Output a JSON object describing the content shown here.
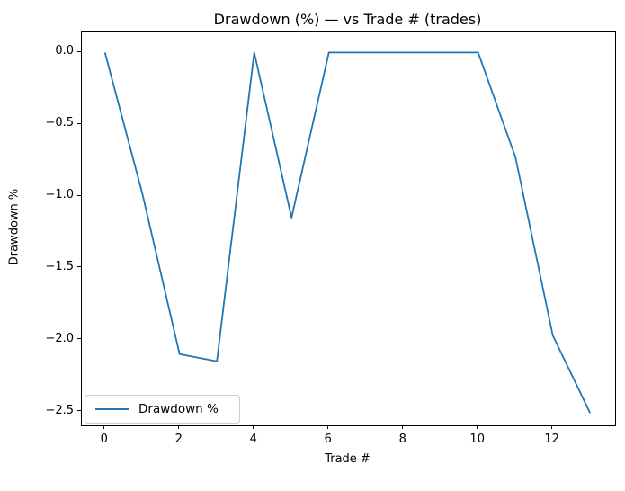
{
  "chart_data": {
    "type": "line",
    "title": "Drawdown (%) — vs Trade # (trades)",
    "xlabel": "Trade #",
    "ylabel": "Drawdown %",
    "x": [
      0,
      1,
      2,
      3,
      4,
      5,
      6,
      7,
      8,
      9,
      10,
      11,
      12,
      13
    ],
    "series": [
      {
        "name": "Drawdown %",
        "color": "#1f77b4",
        "values": [
          0.0,
          -0.98,
          -2.1,
          -2.15,
          0.0,
          -1.15,
          0.0,
          0.0,
          0.0,
          0.0,
          0.0,
          -0.73,
          -1.97,
          -2.51
        ]
      }
    ],
    "xticks": [
      0,
      2,
      4,
      6,
      8,
      10,
      12
    ],
    "xtick_labels": [
      "0",
      "2",
      "4",
      "6",
      "8",
      "10",
      "12"
    ],
    "yticks": [
      0.0,
      -0.5,
      -1.0,
      -1.5,
      -2.0,
      -2.5
    ],
    "ytick_labels": [
      "0.0",
      "−0.5",
      "−1.0",
      "−1.5",
      "−2.0",
      "−2.5"
    ],
    "xlim": [
      -0.62,
      13.67
    ],
    "ylim": [
      -2.596,
      0.14
    ],
    "grid": false,
    "legend": {
      "position": "lower left",
      "entries": [
        "Drawdown %"
      ]
    }
  },
  "colors": {
    "line": "#1f77b4",
    "spine": "#000000",
    "background": "#ffffff",
    "legend_border": "#cccccc"
  }
}
